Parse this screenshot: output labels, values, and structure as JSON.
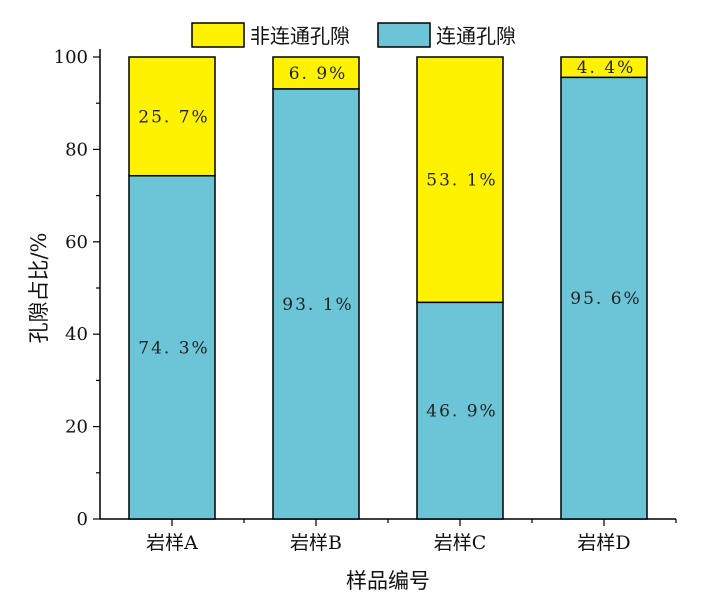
{
  "chart_data": {
    "type": "bar",
    "stacked": true,
    "categories": [
      "岩样A",
      "岩样B",
      "岩样C",
      "岩样D"
    ],
    "series": [
      {
        "name": "连通孔隙",
        "color": "#6BC5D6",
        "values": [
          74.3,
          93.1,
          46.9,
          95.6
        ],
        "labels": [
          "74. 3%",
          "93. 1%",
          "46. 9%",
          "95. 6%"
        ]
      },
      {
        "name": "非连通孔隙",
        "color": "#FFF200",
        "values": [
          25.7,
          6.9,
          53.1,
          4.4
        ],
        "labels": [
          "25. 7%",
          "6. 9%",
          "53. 1%",
          "4. 4%"
        ]
      }
    ],
    "legend_order": [
      1,
      0
    ],
    "xlabel": "样品编号",
    "ylabel": "孔隙占比/%",
    "ylim": [
      0,
      100
    ],
    "yticks": [
      0,
      20,
      40,
      60,
      80,
      100
    ],
    "legend_position": "top"
  }
}
